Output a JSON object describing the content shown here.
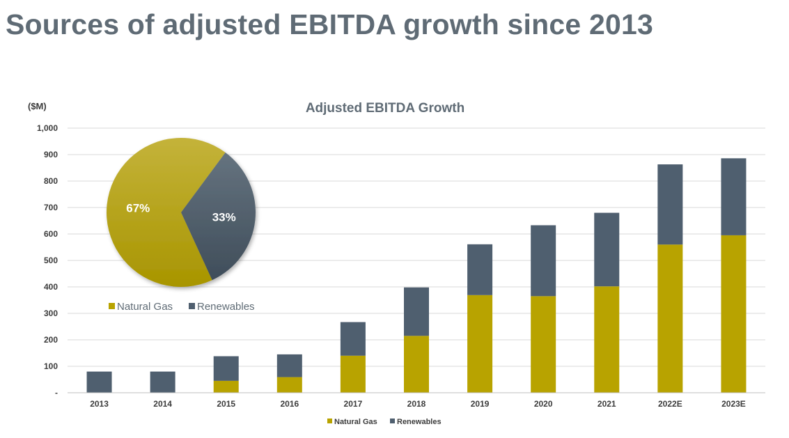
{
  "page": {
    "title": "Sources of adjusted EBITDA growth since 2013"
  },
  "colors": {
    "natural_gas": "#b8a300",
    "renewables": "#4f5f6f",
    "title": "#5f6b75",
    "axis_text": "#3b3b3b",
    "gridline": "#d9d9d9"
  },
  "chart_data": [
    {
      "type": "bar",
      "stacked": true,
      "title": "Adjusted EBITDA Growth",
      "ylabel": "($M)",
      "xlabel": "",
      "ylim": [
        0,
        1000
      ],
      "yticks": [
        0,
        100,
        200,
        300,
        400,
        500,
        600,
        700,
        800,
        900,
        1000
      ],
      "ytick_labels": [
        "-",
        "100",
        "200",
        "300",
        "400",
        "500",
        "600",
        "700",
        "800",
        "900",
        "1,000"
      ],
      "grid": true,
      "legend": {
        "position": "bottom",
        "entries": [
          "Natural Gas",
          "Renewables"
        ]
      },
      "categories": [
        "2013",
        "2014",
        "2015",
        "2016",
        "2017",
        "2018",
        "2019",
        "2020",
        "2021",
        "2022E",
        "2023E"
      ],
      "series": [
        {
          "name": "Natural Gas",
          "color": "#b8a300",
          "values": [
            0,
            0,
            45,
            59,
            140,
            215,
            369,
            365,
            402,
            560,
            595
          ]
        },
        {
          "name": "Renewables",
          "color": "#4f5f6f",
          "values": [
            80,
            80,
            93,
            86,
            127,
            183,
            192,
            268,
            278,
            303,
            291
          ]
        }
      ]
    },
    {
      "type": "pie",
      "labels": [
        "Natural Gas",
        "Renewables"
      ],
      "values": [
        67,
        33
      ],
      "value_labels": [
        "67%",
        "33%"
      ],
      "colors": [
        "#b8a300",
        "#4f5f6f"
      ],
      "legend": {
        "position": "bottom",
        "entries": [
          "Natural Gas",
          "Renewables"
        ]
      }
    }
  ]
}
